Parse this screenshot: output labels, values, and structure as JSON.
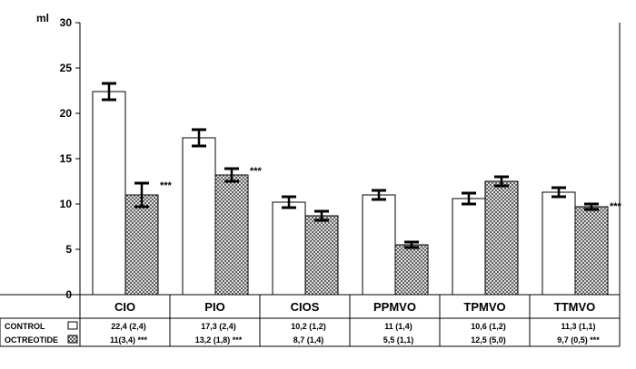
{
  "chart_data": {
    "type": "bar",
    "unit_label": "ml",
    "ylim": [
      0,
      30
    ],
    "yticks": [
      "0",
      "5",
      "10",
      "15",
      "20",
      "25",
      "30"
    ],
    "categories": [
      "CIO",
      "PIO",
      "CIOS",
      "PPMVO",
      "TPMVO",
      "TTMVO"
    ],
    "series": [
      {
        "name": "CONTROL",
        "values": [
          22.4,
          17.3,
          10.2,
          11,
          10.6,
          11.3
        ],
        "errors": [
          0.9,
          0.9,
          0.6,
          0.5,
          0.6,
          0.5
        ],
        "fill": "#ffffff",
        "table": [
          "22,4 (2,4)",
          "17,3  (2,4)",
          "10,2  (1,2)",
          "11     (1,4)",
          "10,6   (1,2)",
          "11,3 (1,1)"
        ]
      },
      {
        "name": "OCTREOTIDE",
        "values": [
          11,
          13.2,
          8.7,
          5.5,
          12.5,
          9.7
        ],
        "errors": [
          1.3,
          0.7,
          0.5,
          0.3,
          0.5,
          0.3
        ],
        "fill": "crosshatch",
        "table": [
          "11(3,4) ***",
          "13,2  (1,8) ***",
          "8,7 (1,4)",
          "5,5    (1,1)",
          "12,5   (5,0)",
          "9,7 (0,5) ***"
        ]
      }
    ],
    "annotations": [
      {
        "category": "CIO",
        "series": "OCTREOTIDE",
        "text": "***"
      },
      {
        "category": "PIO",
        "series": "OCTREOTIDE",
        "text": "***"
      },
      {
        "category": "TTMVO",
        "series": "OCTREOTIDE",
        "text": "***"
      }
    ],
    "grid": false,
    "legend": "table-rows"
  }
}
